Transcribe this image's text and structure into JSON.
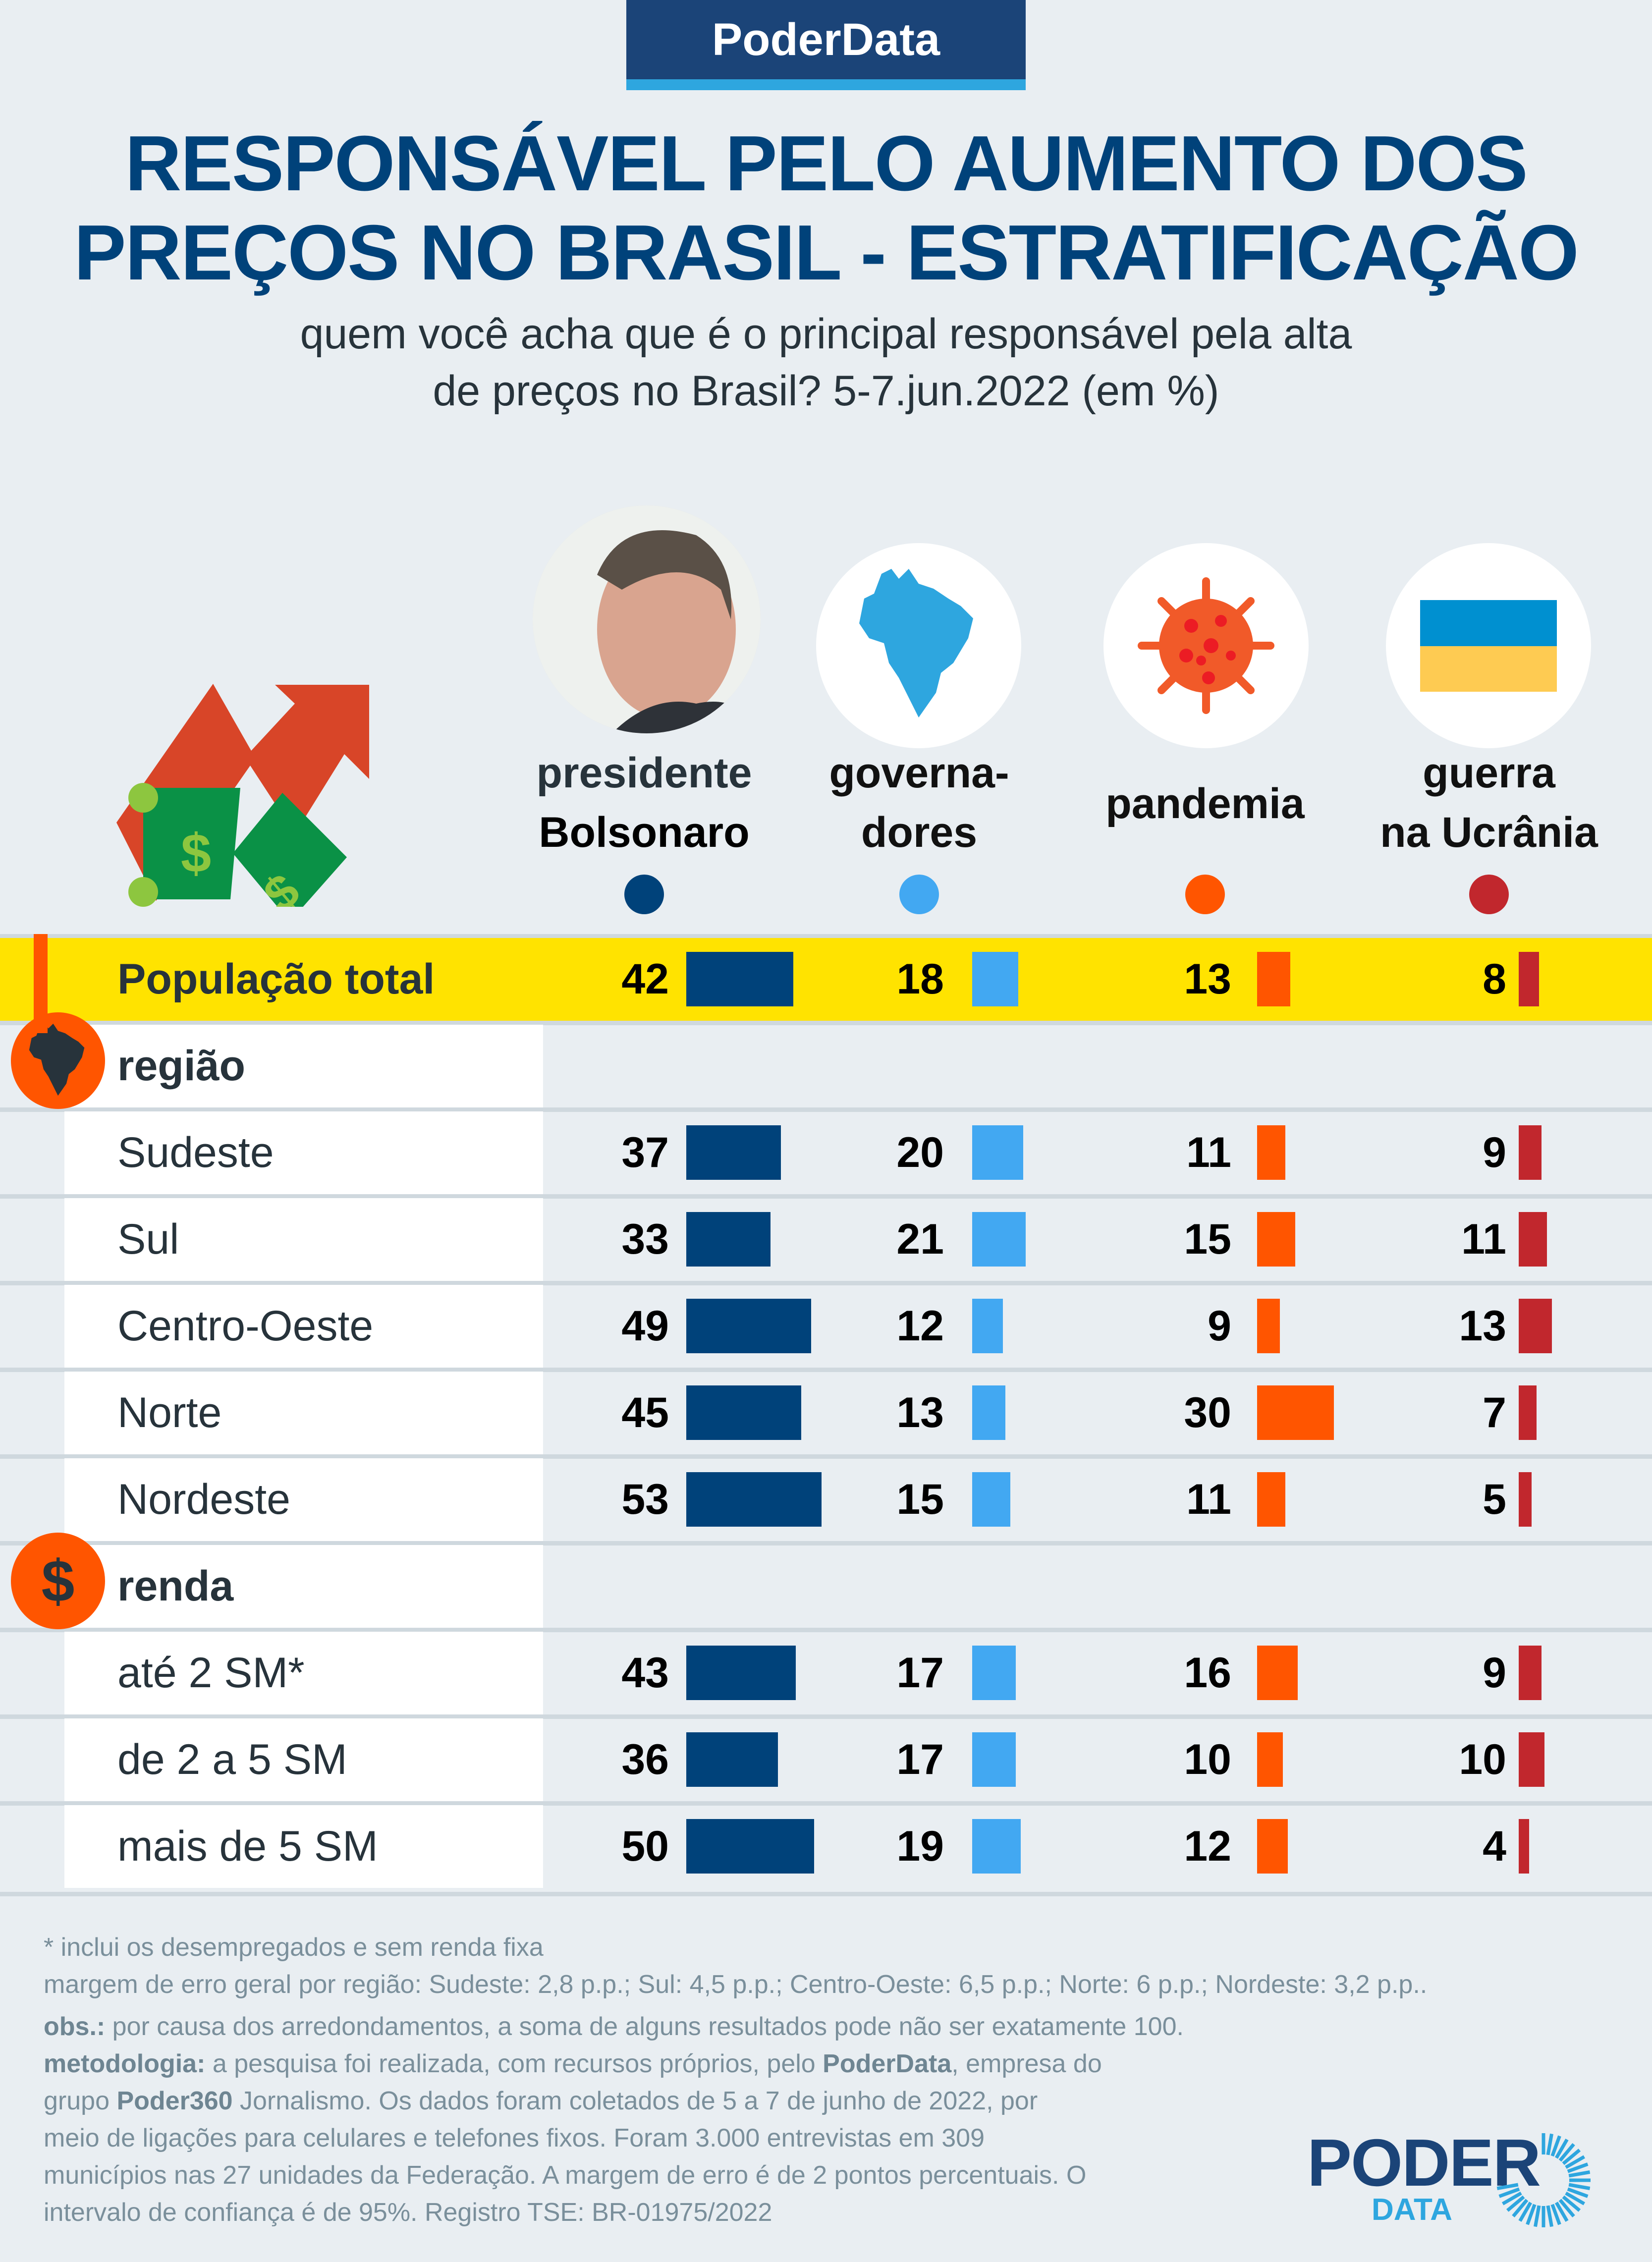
{
  "brand": {
    "header_label": "PoderData"
  },
  "title": {
    "line1": "RESPONSÁVEL PELO AUMENTO DOS",
    "line2": "PREÇOS NO BRASIL - ESTRATIFICAÇÃO",
    "subtitle1": "quem você acha que é o principal responsável pela alta",
    "subtitle2": "de preços no Brasil? 5-7.jun.2022 (em %)"
  },
  "columns": [
    {
      "key": "bolsonaro",
      "label1": "presidente",
      "label2": "Bolsonaro",
      "icon": "bolsonaro-photo",
      "color": "#00427a"
    },
    {
      "key": "governadores",
      "label1": "governa-",
      "label2": "dores",
      "icon": "brazil-map-icon",
      "color": "#42a8f2"
    },
    {
      "key": "pandemia",
      "label1": "pandemia",
      "label2": "",
      "icon": "virus-icon",
      "color": "#ff5500"
    },
    {
      "key": "guerra",
      "label1": "guerra",
      "label2": "na Ucrânia",
      "icon": "ukraine-flag-icon",
      "color": "#c1272d"
    }
  ],
  "sections": {
    "regiao": {
      "label": "região",
      "icon": "brazil-map-icon"
    },
    "renda": {
      "label": "renda",
      "icon": "dollar-icon"
    }
  },
  "chart_data": {
    "type": "table",
    "title": "RESPONSÁVEL PELO AUMENTO DOS PREÇOS NO BRASIL - ESTRATIFICAÇÃO",
    "subtitle": "quem você acha que é o principal responsável pela alta de preços no Brasil? 5-7.jun.2022 (em %)",
    "unit": "%",
    "series_names": [
      "presidente Bolsonaro",
      "governadores",
      "pandemia",
      "guerra na Ucrânia"
    ],
    "rows": [
      {
        "group": "total",
        "label": "População total",
        "values": [
          42,
          18,
          13,
          8
        ]
      },
      {
        "group": "região",
        "label": "Sudeste",
        "values": [
          37,
          20,
          11,
          9
        ]
      },
      {
        "group": "região",
        "label": "Sul",
        "values": [
          33,
          21,
          15,
          11
        ]
      },
      {
        "group": "região",
        "label": "Centro-Oeste",
        "values": [
          49,
          12,
          9,
          13
        ]
      },
      {
        "group": "região",
        "label": "Norte",
        "values": [
          45,
          13,
          30,
          7
        ]
      },
      {
        "group": "região",
        "label": "Nordeste",
        "values": [
          53,
          15,
          11,
          5
        ]
      },
      {
        "group": "renda",
        "label": "até 2 SM*",
        "values": [
          43,
          17,
          16,
          9
        ]
      },
      {
        "group": "renda",
        "label": "de 2 a 5 SM",
        "values": [
          36,
          17,
          10,
          10
        ]
      },
      {
        "group": "renda",
        "label": "mais de 5 SM",
        "values": [
          50,
          19,
          12,
          4
        ]
      }
    ]
  },
  "highlight_color": "#ffe300",
  "footnotes": {
    "line1": "* inclui os desempregados e sem renda fixa",
    "line2": "margem de erro geral por região: Sudeste: 2,8 p.p.; Sul: 4,5 p.p.; Centro-Oeste: 6,5 p.p.; Norte: 6 p.p.; Nordeste: 3,2 p.p..",
    "obs_label": "obs.:",
    "obs_text": " por causa dos arredondamentos, a soma de alguns resultados pode não ser exatamente 100.",
    "met_label": "metodologia:",
    "met_text1": " a pesquisa foi realizada, com recursos próprios, pelo ",
    "met_bold1": "PoderData",
    "met_text2": ", empresa do",
    "met_line2_a": "grupo ",
    "met_bold2": "Poder360",
    "met_line2_b": " Jornalismo. Os dados foram coletados de 5 a 7 de junho de 2022, por",
    "met_line3": "meio de ligações para celulares e telefones fixos. Foram 3.000 entrevistas em 309",
    "met_line4": "municípios nas 27 unidades da Federação. A margem de erro é de 2 pontos percentuais. O",
    "met_line5": "intervalo de confiança é de 95%. Registro TSE: BR-01975/2022"
  },
  "logo": {
    "line1": "PODER",
    "line2": "DATA"
  }
}
